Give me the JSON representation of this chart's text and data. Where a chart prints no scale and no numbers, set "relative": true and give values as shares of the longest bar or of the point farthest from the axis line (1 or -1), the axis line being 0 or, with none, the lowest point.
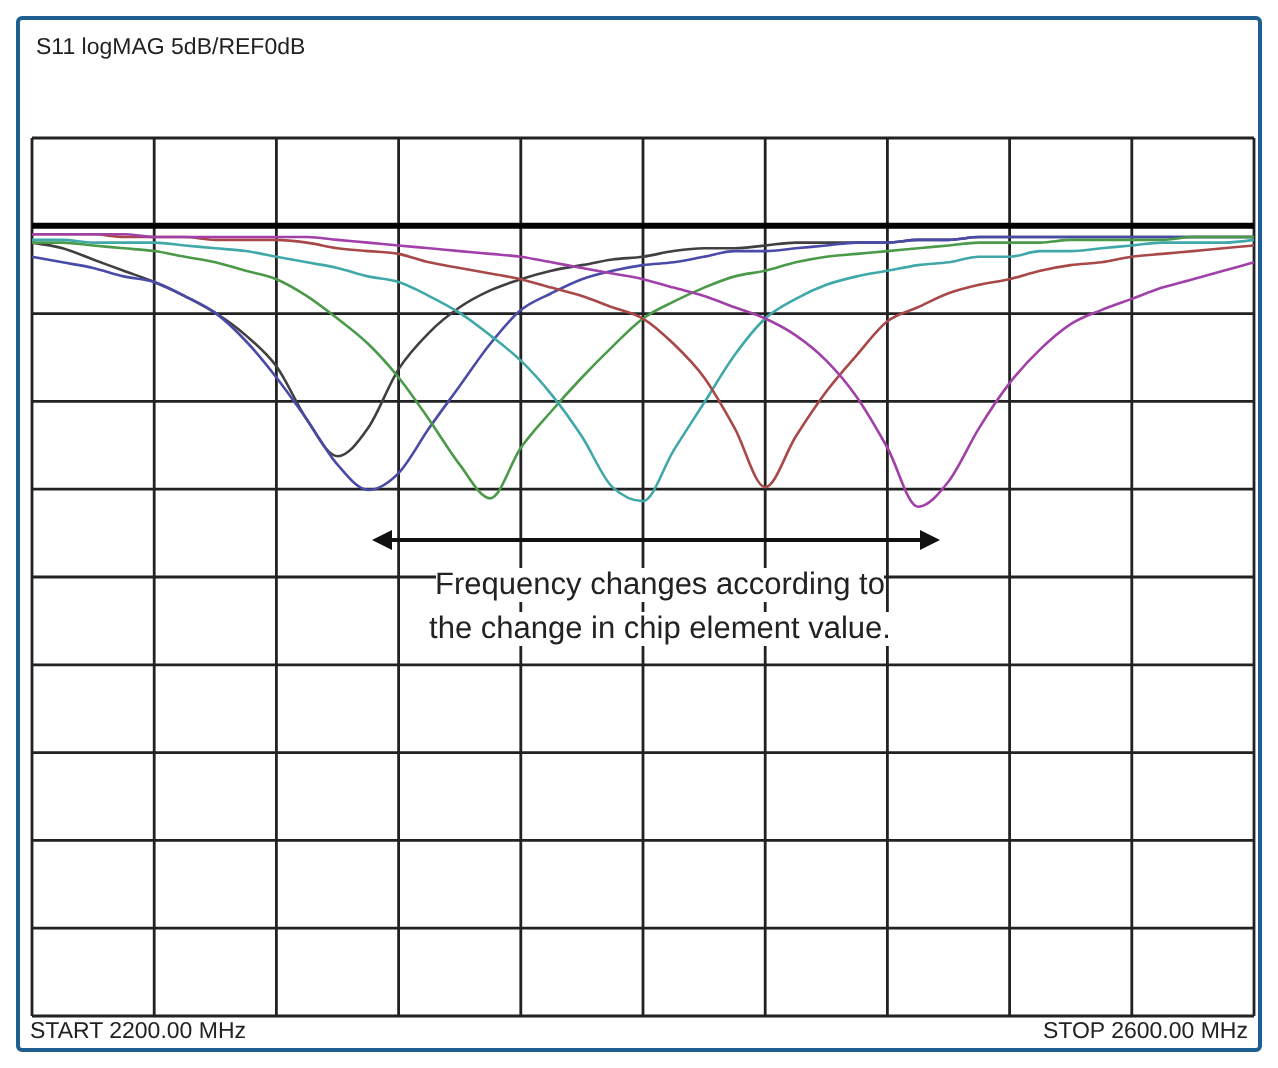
{
  "chart_data": {
    "type": "line",
    "title": "S11 logMAG 5dB/REF0dB",
    "relative": true,
    "grid": true,
    "line_style": "solid",
    "annotations": [
      "Frequency changes according to the change in chip element value.",
      "START  2200.00 MHz",
      "STOP  2600.00 MHz"
    ],
    "categories": [
      null,
      null,
      null,
      null,
      null,
      null,
      null,
      null,
      null,
      null,
      null,
      null,
      null,
      null,
      null,
      null,
      null,
      null,
      null,
      null,
      null,
      null,
      null,
      null,
      null,
      null,
      null,
      null,
      null,
      null,
      null,
      null,
      null,
      null,
      null,
      null,
      null,
      null,
      null,
      null,
      null
    ],
    "series": [
      {
        "color": "#404040",
        "values": [
          -0.06,
          -0.08,
          -0.12,
          -0.16,
          -0.2,
          -0.25,
          -0.31,
          -0.39,
          -0.5,
          -0.69,
          -0.82,
          -0.72,
          -0.51,
          -0.38,
          -0.29,
          -0.23,
          -0.19,
          -0.16,
          -0.14,
          -0.12,
          -0.11,
          -0.09,
          -0.08,
          -0.08,
          -0.07,
          -0.06,
          -0.06,
          -0.06,
          -0.06,
          -0.05,
          -0.05,
          -0.04,
          -0.04,
          -0.04,
          -0.04,
          -0.04,
          -0.04,
          -0.04,
          -0.04,
          -0.04,
          -0.04
        ]
      },
      {
        "color": "#4a4aa8",
        "values": [
          -0.11,
          -0.13,
          -0.15,
          -0.18,
          -0.2,
          -0.25,
          -0.31,
          -0.41,
          -0.54,
          -0.69,
          -0.85,
          -0.94,
          -0.88,
          -0.72,
          -0.57,
          -0.42,
          -0.3,
          -0.24,
          -0.19,
          -0.16,
          -0.14,
          -0.13,
          -0.11,
          -0.09,
          -0.09,
          -0.08,
          -0.07,
          -0.06,
          -0.06,
          -0.05,
          -0.05,
          -0.04,
          -0.04,
          -0.04,
          -0.04,
          -0.04,
          -0.04,
          -0.04,
          -0.04,
          -0.04,
          -0.04
        ]
      },
      {
        "color": "#4a9a4a",
        "values": [
          -0.06,
          -0.06,
          -0.07,
          -0.08,
          -0.09,
          -0.11,
          -0.13,
          -0.16,
          -0.19,
          -0.25,
          -0.33,
          -0.42,
          -0.54,
          -0.69,
          -0.85,
          -0.97,
          -0.79,
          -0.66,
          -0.54,
          -0.43,
          -0.33,
          -0.27,
          -0.22,
          -0.18,
          -0.16,
          -0.13,
          -0.11,
          -0.1,
          -0.09,
          -0.08,
          -0.07,
          -0.06,
          -0.06,
          -0.06,
          -0.05,
          -0.05,
          -0.05,
          -0.05,
          -0.04,
          -0.04,
          -0.04
        ]
      },
      {
        "color": "#40a8a8",
        "values": [
          -0.05,
          -0.05,
          -0.06,
          -0.06,
          -0.06,
          -0.07,
          -0.08,
          -0.09,
          -0.11,
          -0.13,
          -0.15,
          -0.18,
          -0.2,
          -0.25,
          -0.31,
          -0.39,
          -0.48,
          -0.6,
          -0.75,
          -0.93,
          -0.98,
          -0.8,
          -0.63,
          -0.46,
          -0.33,
          -0.26,
          -0.21,
          -0.18,
          -0.16,
          -0.14,
          -0.13,
          -0.11,
          -0.11,
          -0.09,
          -0.09,
          -0.08,
          -0.07,
          -0.06,
          -0.06,
          -0.06,
          -0.05
        ]
      },
      {
        "color": "#a84848",
        "values": [
          -0.03,
          -0.03,
          -0.03,
          -0.04,
          -0.04,
          -0.04,
          -0.05,
          -0.05,
          -0.05,
          -0.06,
          -0.08,
          -0.09,
          -0.1,
          -0.13,
          -0.15,
          -0.17,
          -0.19,
          -0.22,
          -0.25,
          -0.29,
          -0.33,
          -0.42,
          -0.54,
          -0.72,
          -0.93,
          -0.75,
          -0.59,
          -0.46,
          -0.34,
          -0.29,
          -0.24,
          -0.21,
          -0.19,
          -0.16,
          -0.14,
          -0.13,
          -0.11,
          -0.1,
          -0.09,
          -0.08,
          -0.07
        ]
      },
      {
        "color": "#a040a8",
        "values": [
          -0.03,
          -0.03,
          -0.03,
          -0.03,
          -0.04,
          -0.04,
          -0.04,
          -0.04,
          -0.04,
          -0.04,
          -0.05,
          -0.06,
          -0.07,
          -0.08,
          -0.09,
          -0.1,
          -0.11,
          -0.13,
          -0.15,
          -0.17,
          -0.19,
          -0.22,
          -0.25,
          -0.29,
          -0.33,
          -0.39,
          -0.48,
          -0.61,
          -0.79,
          -1,
          -0.91,
          -0.72,
          -0.56,
          -0.44,
          -0.35,
          -0.3,
          -0.26,
          -0.22,
          -0.19,
          -0.16,
          -0.13
        ]
      }
    ]
  }
}
